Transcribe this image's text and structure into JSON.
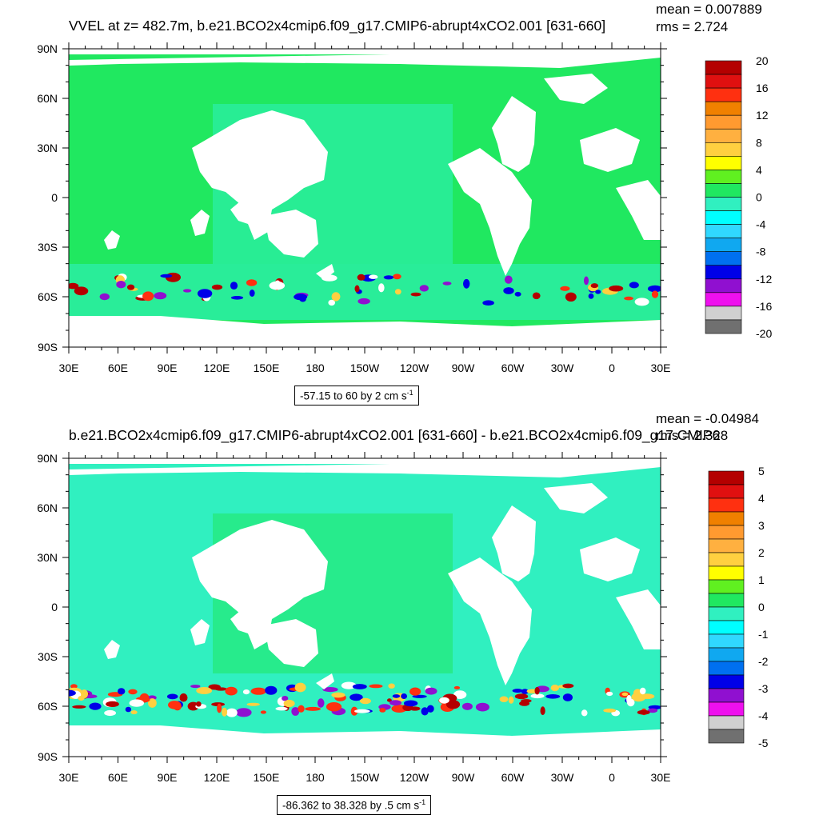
{
  "chart_data": [
    {
      "type": "heatmap",
      "title": "VVEL at z= 482.7m, b.e21.BCO2x4cmip6.f09_g17.CMIP6-abrupt4xCO2.001 [631-660]",
      "stats": {
        "mean": "mean = 0.007889",
        "rms": "rms = 2.724"
      },
      "range_text": "-57.15 to 60 by 2 cm s",
      "range_unit_exp": "-1",
      "x_ticks": [
        "30E",
        "60E",
        "90E",
        "120E",
        "150E",
        "180",
        "150W",
        "120W",
        "90W",
        "60W",
        "30W",
        "0",
        "30E"
      ],
      "y_ticks": [
        "90N",
        "60N",
        "30N",
        "0",
        "30S",
        "60S",
        "90S"
      ],
      "colorbar": {
        "labels": [
          "20",
          "16",
          "12",
          "8",
          "4",
          "0",
          "-4",
          "-8",
          "-12",
          "-16",
          "-20"
        ],
        "colors": [
          "#b40000",
          "#e01010",
          "#ff3010",
          "#f08000",
          "#ff9a30",
          "#ffb040",
          "#ffd040",
          "#ffff00",
          "#60f020",
          "#20e860",
          "#30f0c0",
          "#00ffff",
          "#30d8ff",
          "#10a8f0",
          "#0070f0",
          "#0000e8",
          "#9010d0",
          "#ee10ee",
          "#d0d0d0",
          "#707070"
        ]
      }
    },
    {
      "type": "heatmap",
      "title": "b.e21.BCO2x4cmip6.f09_g17.CMIP6-abrupt4xCO2.001 [631-660] - b.e21.BCO2x4cmip6.f09_g17.CMIP6",
      "stats": {
        "mean": "mean = -0.04984",
        "rms": "rms = 2.328"
      },
      "range_text": "-86.362 to 38.328 by .5 cm s",
      "range_unit_exp": "-1",
      "x_ticks": [
        "30E",
        "60E",
        "90E",
        "120E",
        "150E",
        "180",
        "150W",
        "120W",
        "90W",
        "60W",
        "30W",
        "0",
        "30E"
      ],
      "y_ticks": [
        "90N",
        "60N",
        "30N",
        "0",
        "30S",
        "60S",
        "90S"
      ],
      "colorbar": {
        "labels": [
          "5",
          "4",
          "3",
          "2",
          "1",
          "0",
          "-1",
          "-2",
          "-3",
          "-4",
          "-5"
        ],
        "colors": [
          "#b40000",
          "#e01010",
          "#ff3010",
          "#f08000",
          "#ff9a30",
          "#ffb040",
          "#ffd040",
          "#ffff00",
          "#60f020",
          "#20e860",
          "#30f0c0",
          "#00ffff",
          "#30d8ff",
          "#10a8f0",
          "#0070f0",
          "#0000e8",
          "#9010d0",
          "#ee10ee",
          "#d0d0d0",
          "#707070"
        ]
      }
    }
  ]
}
